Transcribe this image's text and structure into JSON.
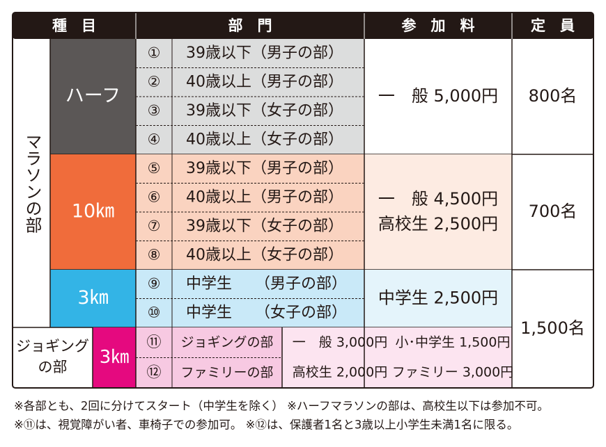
{
  "header": [
    "種　目",
    "部　門",
    "参　加　料",
    "定　員"
  ],
  "marathon_label": "マラソンの部",
  "events": [
    {
      "name": "ハーフ",
      "divisions": [
        {
          "no": "①",
          "label": "39歳以下（男子の部）"
        },
        {
          "no": "②",
          "label": "40歳以上（男子の部）"
        },
        {
          "no": "③",
          "label": "39歳以下（女子の部）"
        },
        {
          "no": "④",
          "label": "40歳以上（女子の部）"
        }
      ],
      "fees": [
        "一　般 5,000円"
      ],
      "capacity": "800名"
    },
    {
      "name": "10㎞",
      "divisions": [
        {
          "no": "⑤",
          "label": "39歳以下（男子の部）"
        },
        {
          "no": "⑥",
          "label": "40歳以上（男子の部）"
        },
        {
          "no": "⑦",
          "label": "39歳以下（女子の部）"
        },
        {
          "no": "⑧",
          "label": "40歳以上（女子の部）"
        }
      ],
      "fees": [
        "一　般 4,500円",
        "高校生 2,500円"
      ],
      "capacity": "700名"
    },
    {
      "name": "3㎞",
      "divisions": [
        {
          "no": "⑨",
          "label": "中学生　　（男子の部）"
        },
        {
          "no": "⑩",
          "label": "中学生　　（女子の部）"
        }
      ],
      "fees": [
        "中学生 2,500円"
      ]
    }
  ],
  "jogging": {
    "label_lines": [
      "ジョギング",
      "の部"
    ],
    "event": "3㎞",
    "divisions": [
      {
        "no": "⑪",
        "label": "ジョギングの部"
      },
      {
        "no": "⑫",
        "label": "ファミリーの部"
      }
    ],
    "fees": [
      "一　般 3,000円",
      "小･中学生 1,500円",
      "高校生 2,000円",
      "ファミリー 3,000円"
    ]
  },
  "shared_capacity": "1,500名",
  "notes": [
    "※各部とも、2回に分けてスタート（中学生を除く） ※ハーフマラソンの部は、高校生以下は参加不可。",
    "※⑪は、視覚障がい者、車椅子での参加可。 ※⑫は、保護者1名と3歳以上小学生未満1名に限る。"
  ]
}
